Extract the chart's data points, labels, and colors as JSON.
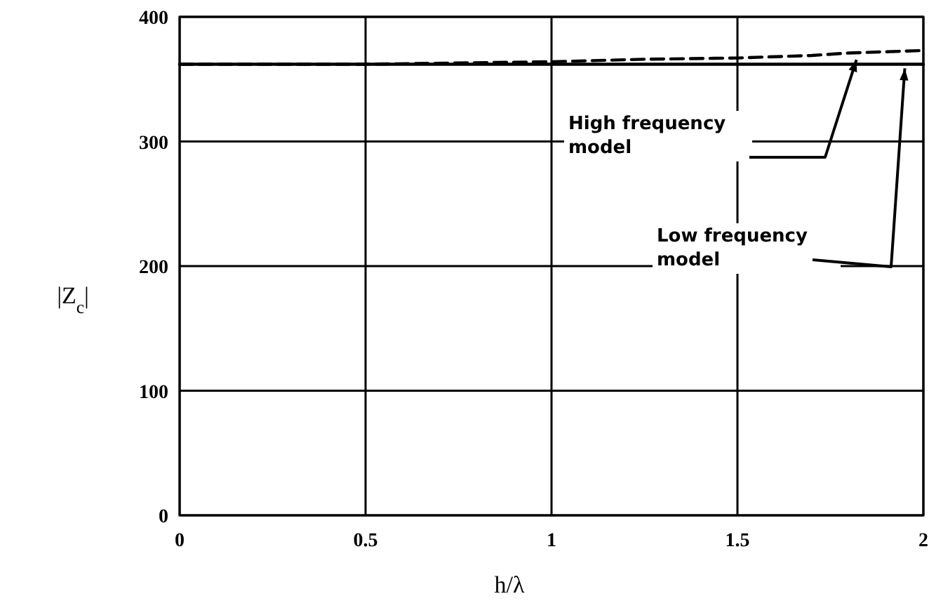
{
  "chart_data": {
    "type": "line",
    "xlabel": "h/λ",
    "ylabel": "|Z$_{c}$|",
    "xlim": [
      0,
      2
    ],
    "ylim": [
      0,
      400
    ],
    "xticks": [
      0,
      0.5,
      1,
      1.5,
      2
    ],
    "yticks": [
      0,
      100,
      200,
      300,
      400
    ],
    "grid": true,
    "annotations": [
      {
        "text": "High frequency model",
        "x": 1.82,
        "y": 369
      },
      {
        "text": "Low frequency model",
        "x": 1.95,
        "y": 362
      }
    ],
    "series": [
      {
        "color": "#000000",
        "line_style": "dashed",
        "x": [
          0,
          0.5,
          0.75,
          1,
          1.25,
          1.5,
          1.7,
          1.8,
          1.9,
          2
        ],
        "values": [
          362,
          362,
          363,
          364,
          366,
          367,
          369,
          371,
          372,
          373
        ]
      },
      {
        "color": "#000000",
        "line_style": "solid",
        "x": [
          0,
          2
        ],
        "values": [
          362,
          362
        ]
      }
    ]
  }
}
